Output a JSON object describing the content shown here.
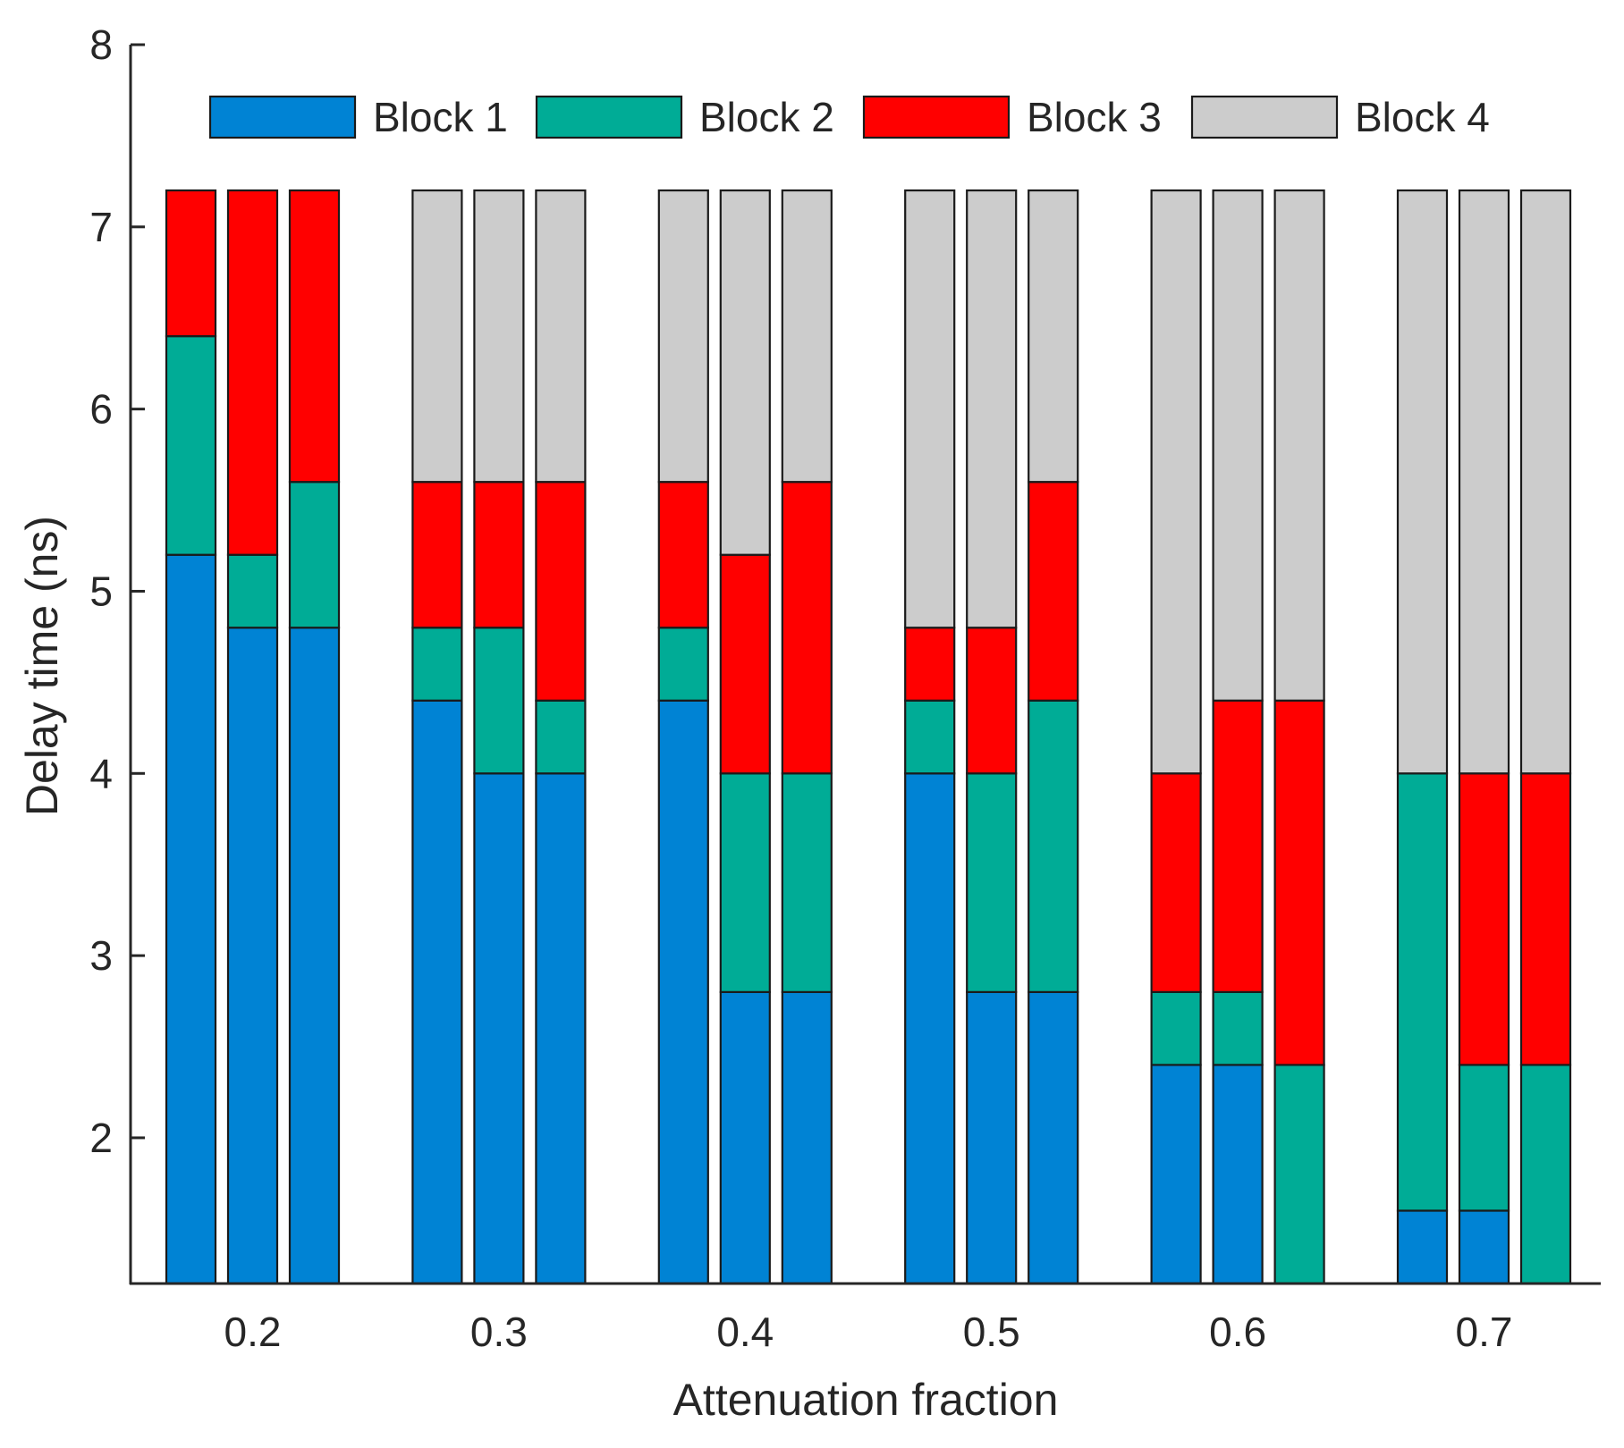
{
  "chart_data": {
    "type": "stacked-bar",
    "title": "",
    "xlabel": "Attenuation fraction",
    "ylabel": "Delay time (ns)",
    "ylim": [
      1.2,
      8
    ],
    "yticks": [
      2,
      3,
      4,
      5,
      6,
      7,
      8
    ],
    "grid": false,
    "legend_position": "top",
    "groups": [
      "0.2",
      "0.3",
      "0.4",
      "0.5",
      "0.6",
      "0.7"
    ],
    "series": [
      {
        "name": "Block 1",
        "color": "#0083d4"
      },
      {
        "name": "Block 2",
        "color": "#00ac96"
      },
      {
        "name": "Block 3",
        "color": "#ff0000"
      },
      {
        "name": "Block 4",
        "color": "#cccccc"
      }
    ],
    "bars": [
      {
        "group": "0.2",
        "bar": 1,
        "order": [
          0,
          1,
          2,
          3
        ],
        "bounds": [
          1.2,
          5.2,
          6.4,
          7.2,
          7.2
        ]
      },
      {
        "group": "0.2",
        "bar": 2,
        "order": [
          0,
          1,
          2,
          3
        ],
        "bounds": [
          1.2,
          4.8,
          5.2,
          7.2,
          7.2
        ]
      },
      {
        "group": "0.2",
        "bar": 3,
        "order": [
          0,
          1,
          2,
          3
        ],
        "bounds": [
          1.2,
          4.8,
          5.6,
          7.2,
          7.2
        ]
      },
      {
        "group": "0.3",
        "bar": 1,
        "order": [
          0,
          1,
          2,
          3
        ],
        "bounds": [
          1.2,
          4.4,
          4.8,
          5.6,
          7.2
        ]
      },
      {
        "group": "0.3",
        "bar": 2,
        "order": [
          0,
          1,
          2,
          3
        ],
        "bounds": [
          1.2,
          4.0,
          4.8,
          5.6,
          7.2
        ]
      },
      {
        "group": "0.3",
        "bar": 3,
        "order": [
          0,
          1,
          2,
          3
        ],
        "bounds": [
          1.2,
          4.0,
          4.4,
          5.6,
          7.2
        ]
      },
      {
        "group": "0.4",
        "bar": 1,
        "order": [
          0,
          1,
          2,
          3
        ],
        "bounds": [
          1.2,
          4.4,
          4.8,
          5.6,
          7.2
        ]
      },
      {
        "group": "0.4",
        "bar": 2,
        "order": [
          0,
          1,
          2,
          3
        ],
        "bounds": [
          1.2,
          2.8,
          4.0,
          5.2,
          7.2
        ]
      },
      {
        "group": "0.4",
        "bar": 3,
        "order": [
          0,
          1,
          2,
          3
        ],
        "bounds": [
          1.2,
          2.8,
          4.0,
          5.6,
          7.2
        ]
      },
      {
        "group": "0.5",
        "bar": 1,
        "order": [
          0,
          1,
          2,
          3
        ],
        "bounds": [
          1.2,
          4.0,
          4.4,
          4.8,
          7.2
        ]
      },
      {
        "group": "0.5",
        "bar": 2,
        "order": [
          0,
          1,
          2,
          3
        ],
        "bounds": [
          1.2,
          2.8,
          4.0,
          4.8,
          7.2
        ]
      },
      {
        "group": "0.5",
        "bar": 3,
        "order": [
          0,
          1,
          2,
          3
        ],
        "bounds": [
          1.2,
          2.8,
          4.4,
          5.6,
          7.2
        ]
      },
      {
        "group": "0.6",
        "bar": 1,
        "order": [
          0,
          1,
          2,
          3
        ],
        "bounds": [
          1.2,
          2.4,
          2.8,
          4.0,
          7.2
        ]
      },
      {
        "group": "0.6",
        "bar": 2,
        "order": [
          0,
          1,
          2,
          3
        ],
        "bounds": [
          1.2,
          2.4,
          2.8,
          4.4,
          7.2
        ]
      },
      {
        "group": "0.6",
        "bar": 3,
        "order": [
          1,
          2,
          3
        ],
        "bounds": [
          1.2,
          2.4,
          4.4,
          7.2
        ]
      },
      {
        "group": "0.7",
        "bar": 1,
        "order": [
          0,
          1,
          3
        ],
        "bounds": [
          1.2,
          1.6,
          4.0,
          7.2
        ]
      },
      {
        "group": "0.7",
        "bar": 2,
        "order": [
          0,
          1,
          2,
          3
        ],
        "bounds": [
          1.2,
          1.6,
          2.4,
          4.0,
          7.2
        ]
      },
      {
        "group": "0.7",
        "bar": 3,
        "order": [
          1,
          2,
          3
        ],
        "bounds": [
          1.2,
          2.4,
          4.0,
          7.2
        ]
      }
    ]
  }
}
